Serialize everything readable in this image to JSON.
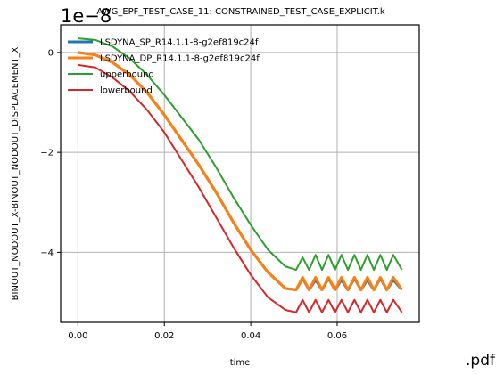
{
  "chart_data": {
    "type": "line",
    "title": "AWG_EPF_TEST_CASE_11: CONSTRAINED_TEST_CASE_EXPLICIT.k",
    "xlabel": "time",
    "ylabel": "BINOUT_NODOUT_X-BINOUT_NODOUT_DISPLACEMENT_X",
    "y_offset_label": "1e−8",
    "xlim": [
      -0.004,
      0.079
    ],
    "ylim": [
      -5.4,
      0.55
    ],
    "x_ticks": [
      0.0,
      0.02,
      0.04,
      0.06
    ],
    "x_tick_labels": [
      "0.00",
      "0.02",
      "0.04",
      "0.06"
    ],
    "y_ticks": [
      0,
      -2,
      -4
    ],
    "y_tick_labels": [
      "0",
      "−2",
      "−4"
    ],
    "grid": true,
    "legend_position": "top-left",
    "series": [
      {
        "name": "LSDYNA_SP_R14.1.1-8-g2ef819c24f",
        "color": "#1f77b4",
        "x": [
          0.0,
          0.004,
          0.008,
          0.012,
          0.016,
          0.02,
          0.024,
          0.028,
          0.032,
          0.036,
          0.04,
          0.044,
          0.048,
          0.0505,
          0.052,
          0.0535,
          0.055,
          0.0565,
          0.058,
          0.0595,
          0.061,
          0.0625,
          0.064,
          0.0655,
          0.067,
          0.0685,
          0.07,
          0.0715,
          0.073,
          0.075
        ],
        "y": [
          0.0,
          -0.05,
          -0.2,
          -0.45,
          -0.8,
          -1.25,
          -1.75,
          -2.25,
          -2.8,
          -3.4,
          -3.95,
          -4.4,
          -4.72,
          -4.75,
          -4.52,
          -4.75,
          -4.55,
          -4.75,
          -4.52,
          -4.75,
          -4.55,
          -4.75,
          -4.52,
          -4.75,
          -4.55,
          -4.75,
          -4.52,
          -4.75,
          -4.55,
          -4.75
        ]
      },
      {
        "name": "LSDYNA_DP_R14.1.1-8-g2ef819c24f",
        "color": "#ff7f0e",
        "x": [
          0.0,
          0.004,
          0.008,
          0.012,
          0.016,
          0.02,
          0.024,
          0.028,
          0.032,
          0.036,
          0.04,
          0.044,
          0.048,
          0.0505,
          0.052,
          0.0535,
          0.055,
          0.0565,
          0.058,
          0.0595,
          0.061,
          0.0625,
          0.064,
          0.0655,
          0.067,
          0.0685,
          0.07,
          0.0715,
          0.073,
          0.075
        ],
        "y": [
          0.0,
          -0.05,
          -0.2,
          -0.45,
          -0.8,
          -1.25,
          -1.75,
          -2.25,
          -2.8,
          -3.4,
          -3.95,
          -4.4,
          -4.72,
          -4.75,
          -4.5,
          -4.75,
          -4.5,
          -4.75,
          -4.5,
          -4.75,
          -4.5,
          -4.75,
          -4.5,
          -4.75,
          -4.5,
          -4.75,
          -4.5,
          -4.75,
          -4.5,
          -4.75
        ]
      },
      {
        "name": "upperbound",
        "color": "#2ca02c",
        "x": [
          0.0,
          0.004,
          0.008,
          0.012,
          0.016,
          0.02,
          0.024,
          0.028,
          0.032,
          0.036,
          0.04,
          0.044,
          0.048,
          0.0505,
          0.052,
          0.0535,
          0.055,
          0.0565,
          0.058,
          0.0595,
          0.061,
          0.0625,
          0.064,
          0.0655,
          0.067,
          0.0685,
          0.07,
          0.0715,
          0.073,
          0.075
        ],
        "y": [
          0.28,
          0.25,
          0.12,
          -0.12,
          -0.45,
          -0.85,
          -1.3,
          -1.75,
          -2.3,
          -2.9,
          -3.45,
          -3.95,
          -4.28,
          -4.35,
          -4.1,
          -4.35,
          -4.05,
          -4.35,
          -4.05,
          -4.35,
          -4.05,
          -4.35,
          -4.05,
          -4.35,
          -4.05,
          -4.35,
          -4.05,
          -4.35,
          -4.05,
          -4.35
        ]
      },
      {
        "name": "lowerbound",
        "color": "#d62728",
        "x": [
          0.0,
          0.004,
          0.008,
          0.012,
          0.016,
          0.02,
          0.024,
          0.028,
          0.032,
          0.036,
          0.04,
          0.044,
          0.048,
          0.0505,
          0.052,
          0.0535,
          0.055,
          0.0565,
          0.058,
          0.0595,
          0.061,
          0.0625,
          0.064,
          0.0655,
          0.067,
          0.0685,
          0.07,
          0.0715,
          0.073,
          0.075
        ],
        "y": [
          -0.25,
          -0.3,
          -0.5,
          -0.78,
          -1.15,
          -1.6,
          -2.15,
          -2.7,
          -3.3,
          -3.9,
          -4.45,
          -4.9,
          -5.15,
          -5.2,
          -4.95,
          -5.2,
          -4.95,
          -5.2,
          -4.95,
          -5.2,
          -4.95,
          -5.2,
          -4.95,
          -5.2,
          -4.95,
          -5.2,
          -4.95,
          -5.2,
          -4.95,
          -5.2
        ]
      }
    ]
  },
  "file_suffix": ".pdf"
}
